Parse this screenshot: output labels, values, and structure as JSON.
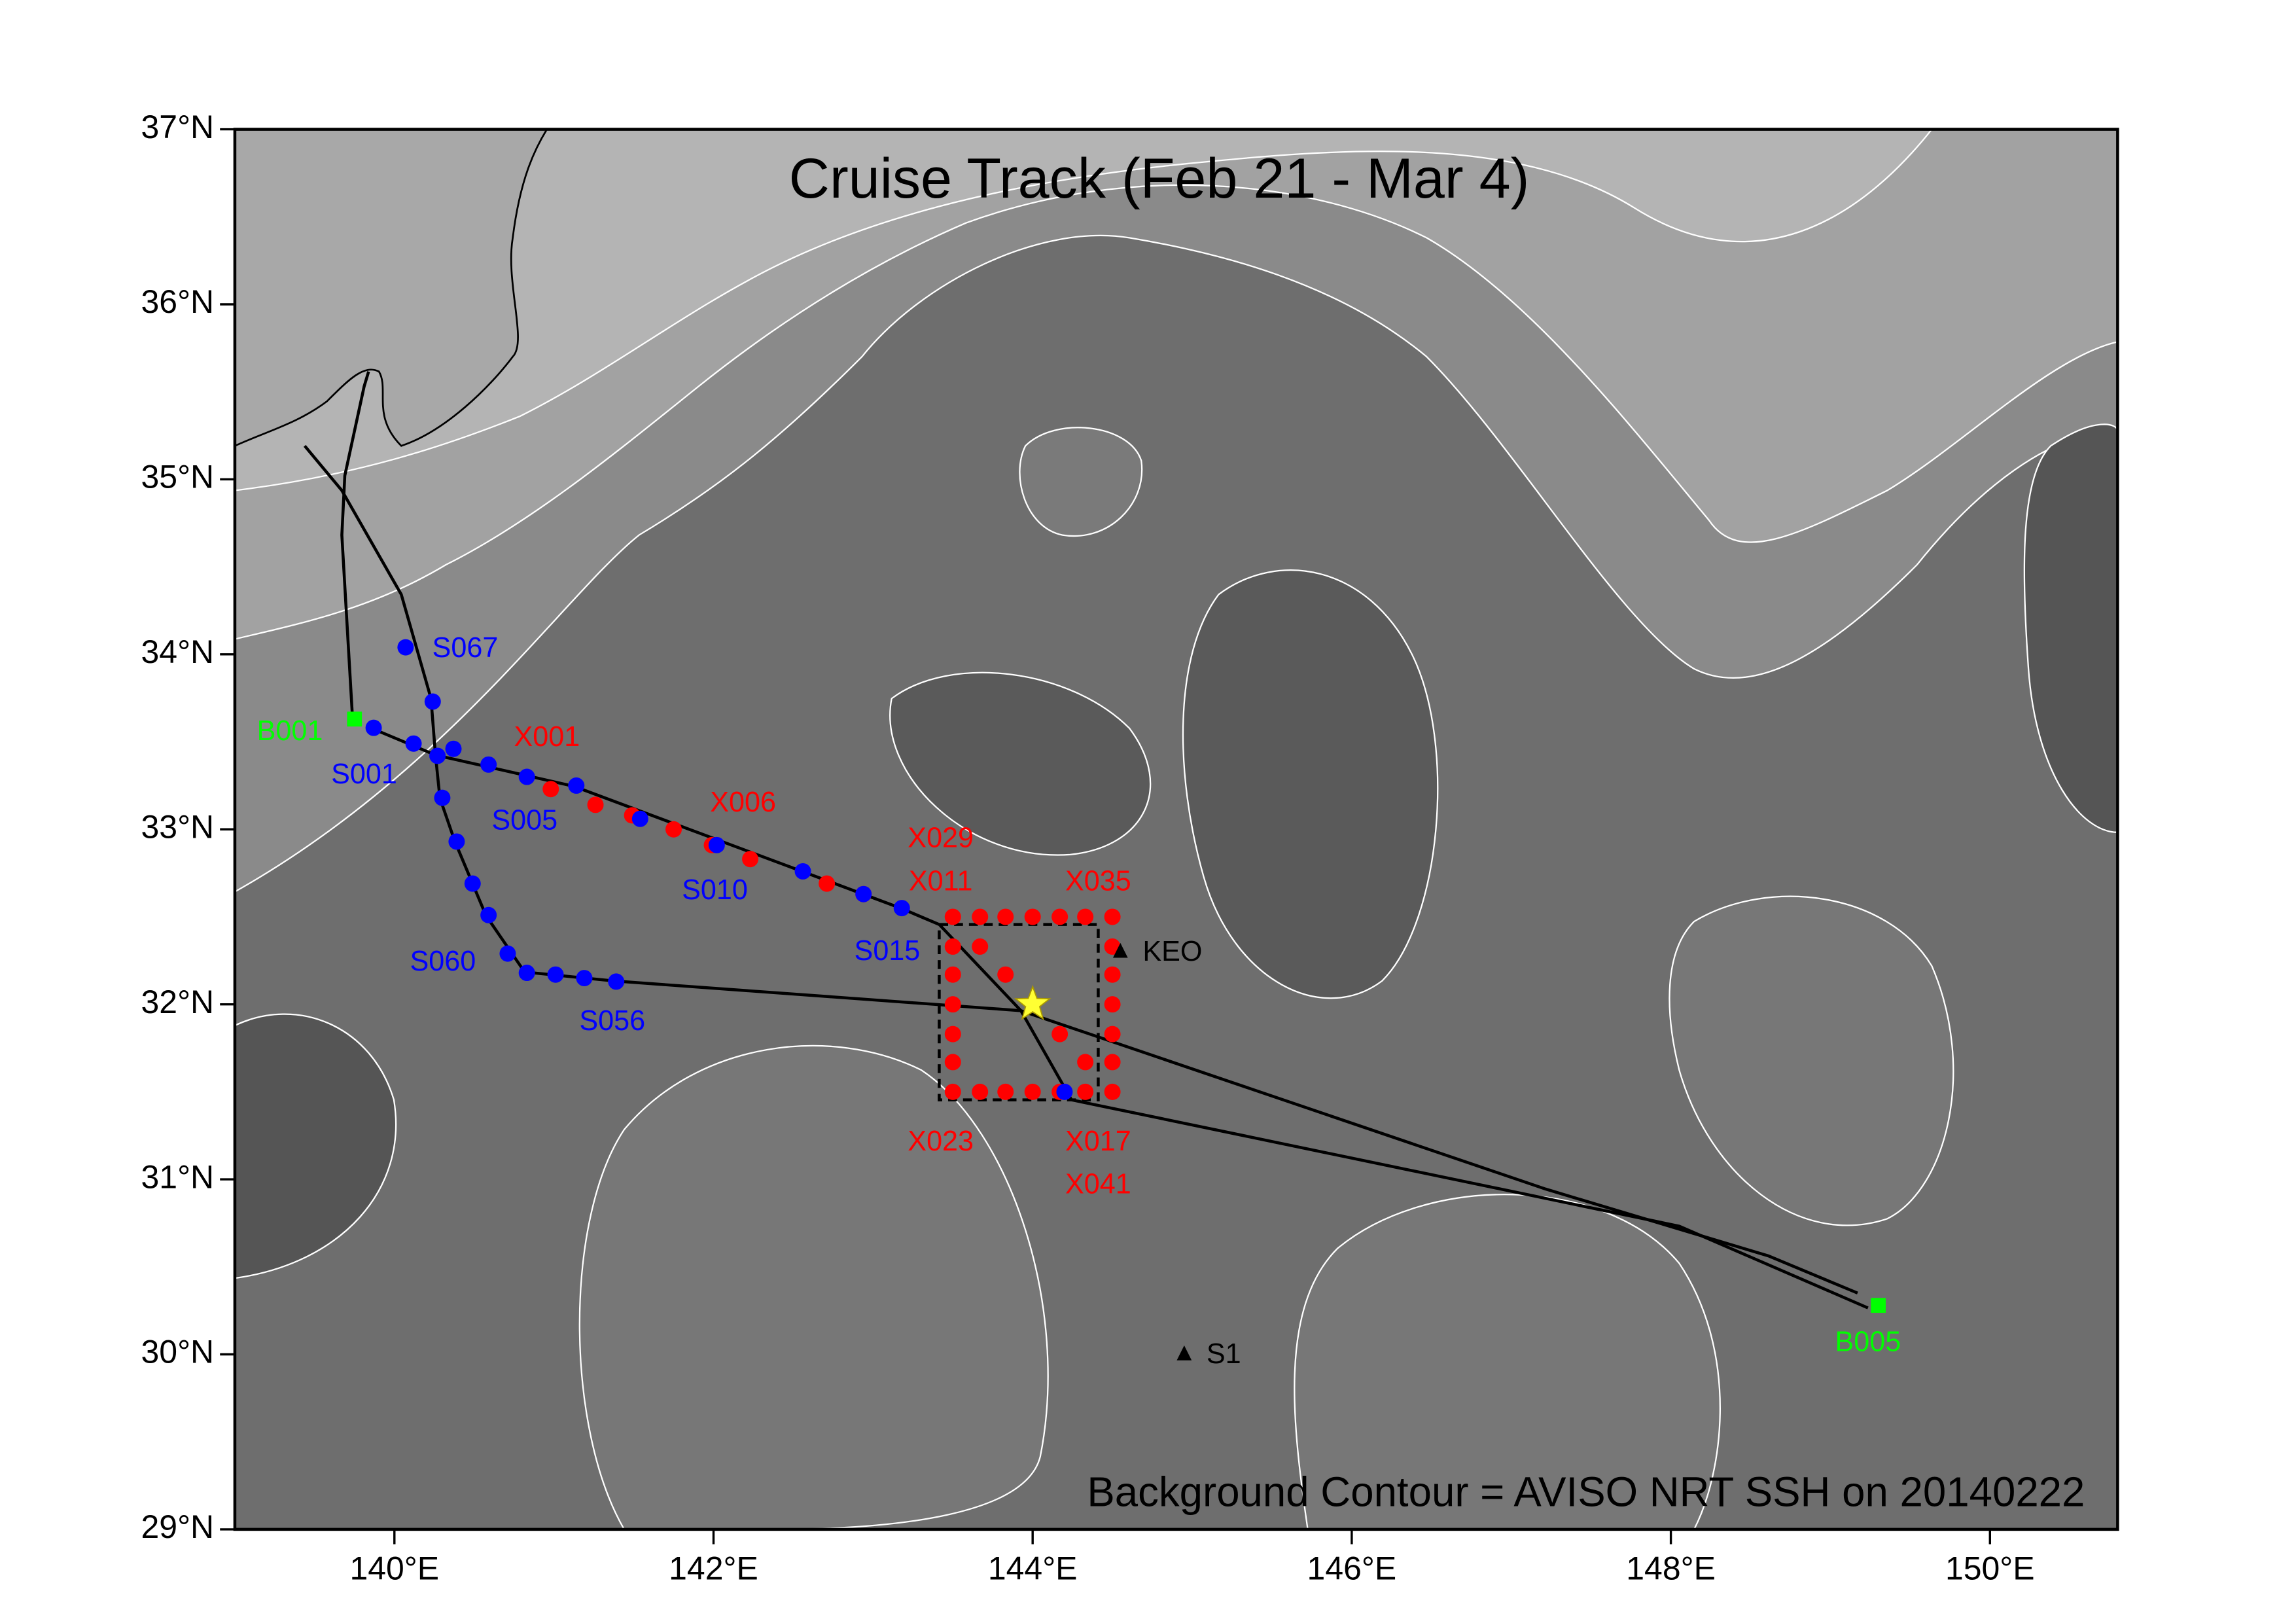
{
  "title": "Cruise Track   (Feb 21 - Mar 4)",
  "annotation": "Background Contour = AVISO NRT SSH on 20140222",
  "xlim": [
    139,
    150.8
  ],
  "ylim": [
    29,
    37
  ],
  "xticks": [
    {
      "value": 140,
      "label": "140°E"
    },
    {
      "value": 142,
      "label": "142°E"
    },
    {
      "value": 144,
      "label": "144°E"
    },
    {
      "value": 146,
      "label": "146°E"
    },
    {
      "value": 148,
      "label": "148°E"
    },
    {
      "value": 150,
      "label": "150°E"
    }
  ],
  "yticks": [
    {
      "value": 29,
      "label": "29°N"
    },
    {
      "value": 30,
      "label": "30°N"
    },
    {
      "value": 31,
      "label": "31°N"
    },
    {
      "value": 32,
      "label": "32°N"
    },
    {
      "value": 33,
      "label": "33°N"
    },
    {
      "value": 34,
      "label": "34°N"
    },
    {
      "value": 35,
      "label": "35°N"
    },
    {
      "value": 36,
      "label": "36°N"
    },
    {
      "value": 37,
      "label": "37°N"
    }
  ],
  "blue_stations": {
    "color": "#0000ff",
    "lon": [
      140.07,
      140.24,
      139.87,
      140.12,
      140.27,
      140.37,
      140.59,
      140.83,
      141.14,
      141.54,
      142.02,
      142.56,
      142.94,
      143.18,
      140.3,
      140.39,
      140.49,
      140.59,
      140.71,
      140.83,
      141.01,
      141.19,
      141.39,
      144.2
    ],
    "lat": [
      34.04,
      33.73,
      33.58,
      33.49,
      33.42,
      33.46,
      33.37,
      33.3,
      33.25,
      33.06,
      32.91,
      32.76,
      32.63,
      32.55,
      33.18,
      32.93,
      32.69,
      32.51,
      32.29,
      32.18,
      32.17,
      32.15,
      32.13,
      31.5
    ]
  },
  "red_stations": {
    "color": "#ff0000",
    "lon": [
      140.98,
      141.26,
      141.49,
      141.75,
      141.99,
      142.23,
      142.71,
      142.94,
      143.5,
      143.67,
      143.83,
      144.0,
      144.17,
      144.33,
      144.5,
      143.5,
      143.5,
      143.5,
      143.5,
      143.5,
      143.5,
      144.5,
      144.5,
      144.5,
      144.5,
      144.5,
      144.5,
      143.67,
      143.83,
      144.0,
      144.17,
      144.33,
      143.67,
      143.83,
      144.17,
      144.33
    ],
    "lat": [
      33.23,
      33.14,
      33.08,
      33.0,
      32.91,
      32.83,
      32.69,
      32.63,
      32.5,
      32.5,
      32.5,
      32.5,
      32.5,
      32.5,
      32.5,
      32.33,
      32.17,
      32.0,
      31.83,
      31.67,
      31.5,
      32.33,
      32.17,
      32.0,
      31.83,
      31.67,
      31.5,
      31.5,
      31.5,
      31.5,
      31.5,
      31.5,
      32.33,
      32.17,
      31.83,
      31.67
    ]
  },
  "station_labels": [
    {
      "text": "S067",
      "color": "#0000ff"
    },
    {
      "text": "S001",
      "color": "#0000ff"
    },
    {
      "text": "S005",
      "color": "#0000ff"
    },
    {
      "text": "S010",
      "color": "#0000ff"
    },
    {
      "text": "S015",
      "color": "#0000ff"
    },
    {
      "text": "S060",
      "color": "#0000ff"
    },
    {
      "text": "S056",
      "color": "#0000ff"
    },
    {
      "text": "X001",
      "color": "#ff0000"
    },
    {
      "text": "X006",
      "color": "#ff0000"
    },
    {
      "text": "X029",
      "color": "#ff0000"
    },
    {
      "text": "X011",
      "color": "#ff0000"
    },
    {
      "text": "X035",
      "color": "#ff0000"
    },
    {
      "text": "X023",
      "color": "#ff0000"
    },
    {
      "text": "X017",
      "color": "#ff0000"
    },
    {
      "text": "X041",
      "color": "#ff0000"
    }
  ],
  "endpoints": {
    "color": "#00ff00",
    "labels": [
      "B001",
      "B005"
    ],
    "lon": [
      139.75,
      149.3
    ],
    "lat": [
      33.63,
      30.28
    ]
  },
  "moorings": {
    "color": "#000000",
    "labels": [
      "KEO",
      "S1"
    ],
    "lon": [
      144.55,
      144.95
    ],
    "lat": [
      32.3,
      30.0
    ]
  },
  "star": {
    "color": "#ffff33",
    "lon": 144.0,
    "lat": 32.0
  }
}
